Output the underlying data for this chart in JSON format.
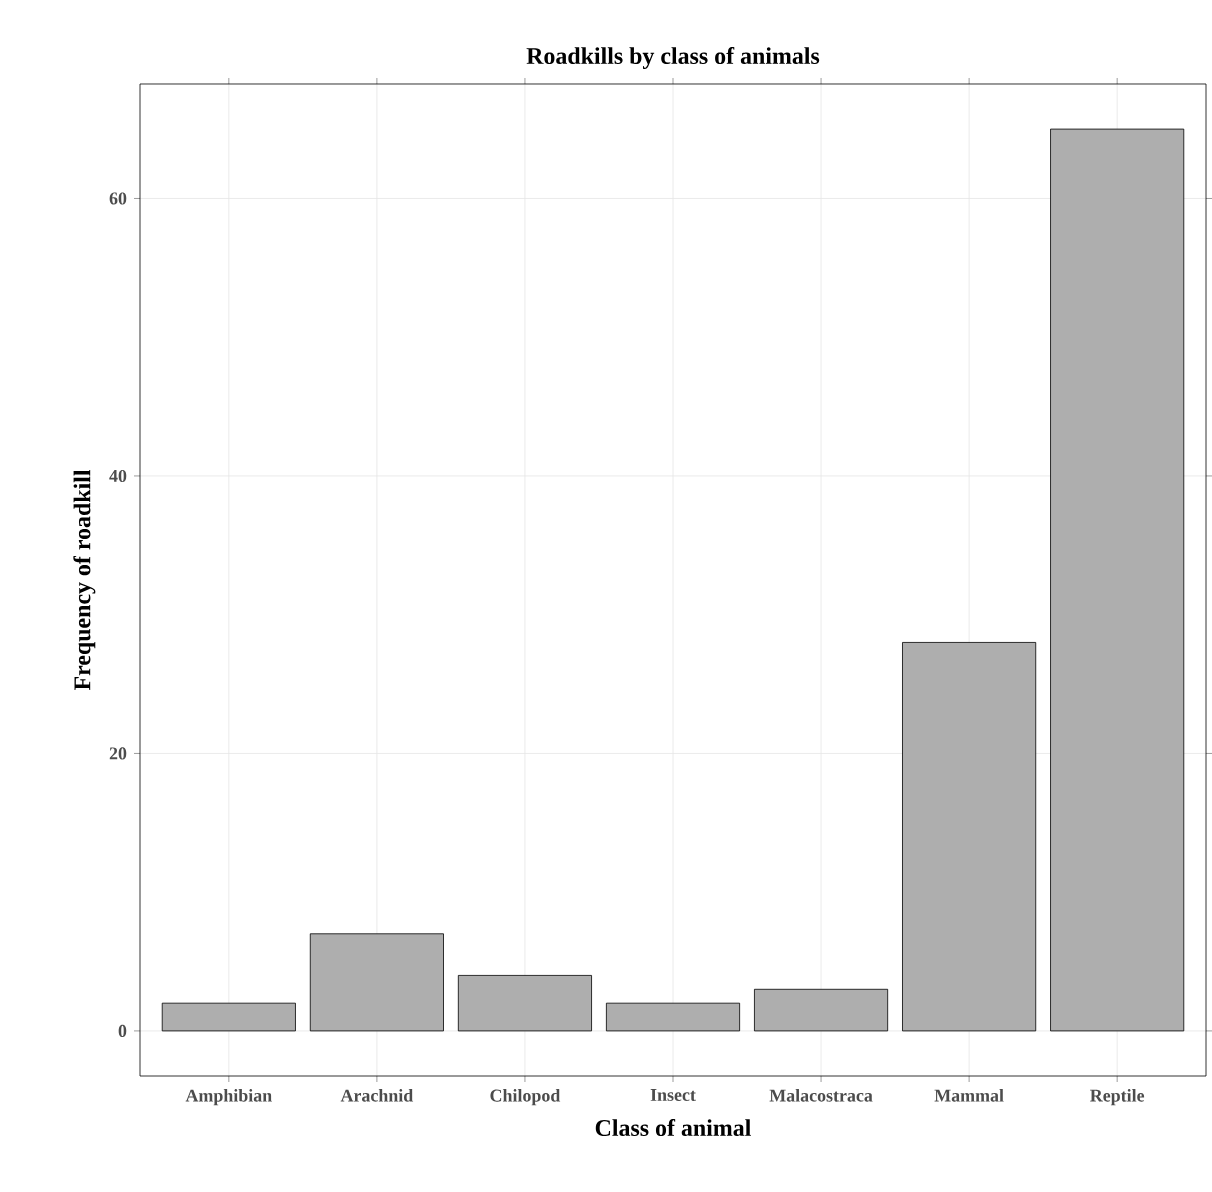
{
  "chart_data": {
    "type": "bar",
    "title": "Roadkills by class of animals",
    "xlabel": "Class of animal",
    "ylabel": "Frequency of roadkill",
    "categories": [
      "Amphibian",
      "Arachnid",
      "Chilopod",
      "Insect",
      "Malacostraca",
      "Mammal",
      "Reptile"
    ],
    "values": [
      2,
      7,
      4,
      2,
      3,
      28,
      65
    ],
    "color": "#aeaeae",
    "ylim": [
      -3.25,
      68.25
    ],
    "yticks": [
      0,
      20,
      40,
      60
    ],
    "grid": true
  }
}
